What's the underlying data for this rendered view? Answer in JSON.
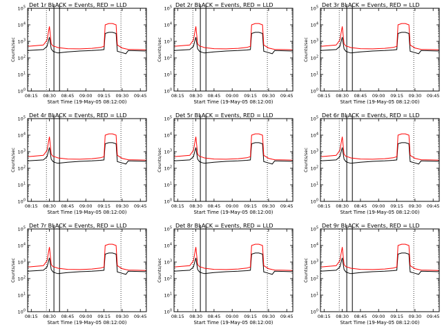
{
  "figure": {
    "colors": {
      "events": "#000000",
      "lld": "#ff0000",
      "frame": "#000000",
      "background": "#ffffff"
    }
  },
  "chart_data": [
    {
      "type": "line",
      "title": "Det 1r  BLACK = Events, RED = LLD",
      "xlabel": "Start Time (19-May-05 08:12:00)",
      "ylabel": "Counts/sec",
      "x_tick_labels": [
        "08:15",
        "08:30",
        "08:45",
        "09:00",
        "09:15",
        "09:30",
        "09:45"
      ],
      "y_tick_labels": [
        "10^0",
        "10^1",
        "10^2",
        "10^3",
        "10^4",
        "10^5"
      ],
      "ylim": [
        1,
        100000
      ],
      "yscale": "log",
      "x": [
        "08:12",
        "08:25",
        "08:28",
        "08:30",
        "08:31.5",
        "08:33",
        "08:35",
        "08:37",
        "08:45",
        "08:55",
        "09:05",
        "09:12",
        "09:15",
        "09:16",
        "09:19",
        "09:22",
        "09:25",
        "09:26",
        "09:30",
        "09:33",
        "09:35",
        "09:43",
        "09:50"
      ],
      "series": [
        {
          "name": "Events",
          "values": [
            280,
            320,
            500,
            1800,
            350,
            250,
            220,
            200,
            230,
            260,
            280,
            300,
            320,
            3000,
            3500,
            3500,
            3000,
            250,
            210,
            180,
            280,
            270,
            260
          ]
        },
        {
          "name": "LLD",
          "values": [
            500,
            600,
            1200,
            8000,
            700,
            520,
            480,
            420,
            360,
            350,
            380,
            430,
            500,
            10000,
            12000,
            12000,
            10000,
            600,
            400,
            350,
            330,
            320,
            310
          ]
        }
      ],
      "vertical_lines": {
        "dotted": [
          "08:27.5",
          "09:29"
        ],
        "solid": [
          "08:33.7",
          "08:38.3"
        ]
      }
    },
    {
      "type": "line",
      "title": "Det 2r  BLACK = Events, RED = LLD",
      "xlabel": "Start Time (19-May-05 08:12:00)",
      "ylabel": "Counts/sec",
      "x_tick_labels": [
        "08:15",
        "08:30",
        "08:45",
        "09:00",
        "09:15",
        "09:30",
        "09:45"
      ],
      "y_tick_labels": [
        "10^0",
        "10^1",
        "10^2",
        "10^3",
        "10^4",
        "10^5"
      ],
      "ylim": [
        1,
        100000
      ],
      "yscale": "log",
      "x": [
        "08:12",
        "08:25",
        "08:28",
        "08:30",
        "08:31.5",
        "08:33",
        "08:35",
        "08:37",
        "08:45",
        "08:55",
        "09:05",
        "09:12",
        "09:15",
        "09:16",
        "09:19",
        "09:22",
        "09:25",
        "09:26",
        "09:30",
        "09:33",
        "09:35",
        "09:43",
        "09:50"
      ],
      "series": [
        {
          "name": "Events",
          "values": [
            280,
            320,
            500,
            1800,
            350,
            250,
            220,
            200,
            230,
            260,
            280,
            300,
            320,
            3000,
            3500,
            3500,
            3000,
            250,
            210,
            180,
            280,
            270,
            260
          ]
        },
        {
          "name": "LLD",
          "values": [
            500,
            600,
            1200,
            8000,
            700,
            520,
            480,
            420,
            360,
            350,
            380,
            430,
            500,
            10000,
            12000,
            12000,
            10000,
            600,
            400,
            350,
            330,
            320,
            310
          ]
        }
      ],
      "vertical_lines": {
        "dotted": [
          "08:27.5",
          "09:29"
        ],
        "solid": [
          "08:33.7",
          "08:38.3"
        ]
      }
    },
    {
      "type": "line",
      "title": "Det 3r  BLACK = Events, RED = LLD",
      "xlabel": "Start Time (19-May-05 08:12:00)",
      "ylabel": "Counts/sec",
      "x_tick_labels": [
        "08:15",
        "08:30",
        "08:45",
        "09:00",
        "09:15",
        "09:30",
        "09:45"
      ],
      "y_tick_labels": [
        "10^0",
        "10^1",
        "10^2",
        "10^3",
        "10^4",
        "10^5"
      ],
      "ylim": [
        1,
        100000
      ],
      "yscale": "log",
      "x": [
        "08:12",
        "08:25",
        "08:28",
        "08:30",
        "08:31.5",
        "08:33",
        "08:35",
        "08:37",
        "08:45",
        "08:55",
        "09:05",
        "09:12",
        "09:15",
        "09:16",
        "09:19",
        "09:22",
        "09:25",
        "09:26",
        "09:30",
        "09:33",
        "09:35",
        "09:43",
        "09:50"
      ],
      "series": [
        {
          "name": "Events",
          "values": [
            280,
            320,
            500,
            1800,
            350,
            250,
            220,
            200,
            230,
            260,
            280,
            300,
            320,
            3000,
            3500,
            3500,
            3000,
            250,
            210,
            180,
            280,
            270,
            260
          ]
        },
        {
          "name": "LLD",
          "values": [
            500,
            600,
            1200,
            8000,
            700,
            520,
            480,
            420,
            360,
            350,
            380,
            430,
            500,
            10000,
            12000,
            12000,
            10000,
            600,
            400,
            350,
            330,
            320,
            310
          ]
        }
      ],
      "vertical_lines": {
        "dotted": [
          "08:27.5",
          "09:29"
        ],
        "solid": [
          "08:33.7",
          "08:38.3"
        ]
      }
    },
    {
      "type": "line",
      "title": "Det 4r  BLACK = Events, RED = LLD",
      "xlabel": "Start Time (19-May-05 08:12:00)",
      "ylabel": "Counts/sec",
      "x_tick_labels": [
        "08:15",
        "08:30",
        "08:45",
        "09:00",
        "09:15",
        "09:30",
        "09:45"
      ],
      "y_tick_labels": [
        "10^0",
        "10^1",
        "10^2",
        "10^3",
        "10^4",
        "10^5"
      ],
      "ylim": [
        1,
        100000
      ],
      "yscale": "log",
      "x": [
        "08:12",
        "08:25",
        "08:28",
        "08:30",
        "08:31.5",
        "08:33",
        "08:35",
        "08:37",
        "08:45",
        "08:55",
        "09:05",
        "09:12",
        "09:15",
        "09:16",
        "09:19",
        "09:22",
        "09:25",
        "09:26",
        "09:30",
        "09:33",
        "09:35",
        "09:43",
        "09:50"
      ],
      "series": [
        {
          "name": "Events",
          "values": [
            280,
            320,
            500,
            1800,
            350,
            250,
            220,
            200,
            230,
            260,
            280,
            300,
            320,
            3000,
            3500,
            3500,
            3000,
            250,
            210,
            180,
            280,
            270,
            260
          ]
        },
        {
          "name": "LLD",
          "values": [
            500,
            600,
            1200,
            8000,
            700,
            520,
            480,
            420,
            360,
            350,
            380,
            430,
            500,
            10000,
            12000,
            12000,
            10000,
            600,
            400,
            350,
            330,
            320,
            310
          ]
        }
      ],
      "vertical_lines": {
        "dotted": [
          "08:27.5",
          "09:29"
        ],
        "solid": [
          "08:33.7",
          "08:38.3"
        ]
      }
    },
    {
      "type": "line",
      "title": "Det 5r  BLACK = Events, RED = LLD",
      "xlabel": "Start Time (19-May-05 08:12:00)",
      "ylabel": "Counts/sec",
      "x_tick_labels": [
        "08:15",
        "08:30",
        "08:45",
        "09:00",
        "09:15",
        "09:30",
        "09:45"
      ],
      "y_tick_labels": [
        "10^0",
        "10^1",
        "10^2",
        "10^3",
        "10^4",
        "10^5"
      ],
      "ylim": [
        1,
        100000
      ],
      "yscale": "log",
      "x": [
        "08:12",
        "08:25",
        "08:28",
        "08:30",
        "08:31.5",
        "08:33",
        "08:35",
        "08:37",
        "08:45",
        "08:55",
        "09:05",
        "09:12",
        "09:15",
        "09:16",
        "09:19",
        "09:22",
        "09:25",
        "09:26",
        "09:30",
        "09:33",
        "09:35",
        "09:43",
        "09:50"
      ],
      "series": [
        {
          "name": "Events",
          "values": [
            280,
            320,
            500,
            1800,
            350,
            250,
            220,
            200,
            230,
            260,
            280,
            300,
            320,
            3000,
            3500,
            3500,
            3000,
            250,
            210,
            180,
            280,
            270,
            260
          ]
        },
        {
          "name": "LLD",
          "values": [
            500,
            600,
            1200,
            8000,
            700,
            520,
            480,
            420,
            360,
            350,
            380,
            430,
            500,
            10000,
            12000,
            12000,
            10000,
            600,
            400,
            350,
            330,
            320,
            310
          ]
        }
      ],
      "vertical_lines": {
        "dotted": [
          "08:27.5",
          "09:29"
        ],
        "solid": [
          "08:33.7",
          "08:38.3"
        ]
      }
    },
    {
      "type": "line",
      "title": "Det 6r  BLACK = Events, RED = LLD",
      "xlabel": "Start Time (19-May-05 08:12:00)",
      "ylabel": "Counts/sec",
      "x_tick_labels": [
        "08:15",
        "08:30",
        "08:45",
        "09:00",
        "09:15",
        "09:30",
        "09:45"
      ],
      "y_tick_labels": [
        "10^0",
        "10^1",
        "10^2",
        "10^3",
        "10^4",
        "10^5"
      ],
      "ylim": [
        1,
        100000
      ],
      "yscale": "log",
      "x": [
        "08:12",
        "08:25",
        "08:28",
        "08:30",
        "08:31.5",
        "08:33",
        "08:35",
        "08:37",
        "08:45",
        "08:55",
        "09:05",
        "09:12",
        "09:15",
        "09:16",
        "09:19",
        "09:22",
        "09:25",
        "09:26",
        "09:30",
        "09:33",
        "09:35",
        "09:43",
        "09:50"
      ],
      "series": [
        {
          "name": "Events",
          "values": [
            280,
            320,
            500,
            1800,
            350,
            250,
            220,
            200,
            230,
            260,
            280,
            300,
            320,
            3000,
            3500,
            3500,
            3000,
            250,
            210,
            180,
            280,
            270,
            260
          ]
        },
        {
          "name": "LLD",
          "values": [
            500,
            600,
            1200,
            8000,
            700,
            520,
            480,
            420,
            360,
            350,
            380,
            430,
            500,
            10000,
            12000,
            12000,
            10000,
            600,
            400,
            350,
            330,
            320,
            310
          ]
        }
      ],
      "vertical_lines": {
        "dotted": [
          "08:27.5",
          "09:29"
        ],
        "solid": [
          "08:33.7",
          "08:38.3"
        ]
      }
    },
    {
      "type": "line",
      "title": "Det 7r  BLACK = Events, RED = LLD",
      "xlabel": "Start Time (19-May-05 08:12:00)",
      "ylabel": "Counts/sec",
      "x_tick_labels": [
        "08:15",
        "08:30",
        "08:45",
        "09:00",
        "09:15",
        "09:30",
        "09:45"
      ],
      "y_tick_labels": [
        "10^0",
        "10^1",
        "10^2",
        "10^3",
        "10^4",
        "10^5"
      ],
      "ylim": [
        1,
        100000
      ],
      "yscale": "log",
      "x": [
        "08:12",
        "08:25",
        "08:28",
        "08:30",
        "08:31.5",
        "08:33",
        "08:35",
        "08:37",
        "08:45",
        "08:55",
        "09:05",
        "09:12",
        "09:15",
        "09:16",
        "09:19",
        "09:22",
        "09:25",
        "09:26",
        "09:30",
        "09:33",
        "09:35",
        "09:43",
        "09:50"
      ],
      "series": [
        {
          "name": "Events",
          "values": [
            280,
            320,
            500,
            1800,
            350,
            250,
            220,
            200,
            230,
            260,
            280,
            300,
            320,
            3000,
            3500,
            3500,
            3000,
            250,
            210,
            180,
            280,
            270,
            260
          ]
        },
        {
          "name": "LLD",
          "values": [
            500,
            600,
            1200,
            8000,
            700,
            520,
            480,
            420,
            360,
            350,
            380,
            430,
            500,
            10000,
            12000,
            12000,
            10000,
            600,
            400,
            350,
            330,
            320,
            310
          ]
        }
      ],
      "vertical_lines": {
        "dotted": [
          "08:27.5",
          "09:29"
        ],
        "solid": [
          "08:33.7",
          "08:38.3"
        ]
      }
    },
    {
      "type": "line",
      "title": "Det 8r  BLACK = Events, RED = LLD",
      "xlabel": "Start Time (19-May-05 08:12:00)",
      "ylabel": "Counts/sec",
      "x_tick_labels": [
        "08:15",
        "08:30",
        "08:45",
        "09:00",
        "09:15",
        "09:30",
        "09:45"
      ],
      "y_tick_labels": [
        "10^0",
        "10^1",
        "10^2",
        "10^3",
        "10^4",
        "10^5"
      ],
      "ylim": [
        1,
        100000
      ],
      "yscale": "log",
      "x": [
        "08:12",
        "08:25",
        "08:28",
        "08:30",
        "08:31.5",
        "08:33",
        "08:35",
        "08:37",
        "08:45",
        "08:55",
        "09:05",
        "09:12",
        "09:15",
        "09:16",
        "09:19",
        "09:22",
        "09:25",
        "09:26",
        "09:30",
        "09:33",
        "09:35",
        "09:43",
        "09:50"
      ],
      "series": [
        {
          "name": "Events",
          "values": [
            280,
            320,
            500,
            1800,
            350,
            250,
            220,
            200,
            230,
            260,
            280,
            300,
            320,
            3000,
            3500,
            3500,
            3000,
            250,
            210,
            180,
            280,
            270,
            260
          ]
        },
        {
          "name": "LLD",
          "values": [
            500,
            600,
            1200,
            8000,
            700,
            520,
            480,
            420,
            360,
            350,
            380,
            430,
            500,
            10000,
            12000,
            12000,
            10000,
            600,
            400,
            350,
            330,
            320,
            310
          ]
        }
      ],
      "vertical_lines": {
        "dotted": [
          "08:27.5",
          "09:29"
        ],
        "solid": [
          "08:33.7",
          "08:38.3"
        ]
      }
    },
    {
      "type": "line",
      "title": "Det 9r  BLACK = Events, RED = LLD",
      "xlabel": "Start Time (19-May-05 08:12:00)",
      "ylabel": "Counts/sec",
      "x_tick_labels": [
        "08:15",
        "08:30",
        "08:45",
        "09:00",
        "09:15",
        "09:30",
        "09:45"
      ],
      "y_tick_labels": [
        "10^0",
        "10^1",
        "10^2",
        "10^3",
        "10^4",
        "10^5"
      ],
      "ylim": [
        1,
        100000
      ],
      "yscale": "log",
      "x": [
        "08:12",
        "08:25",
        "08:28",
        "08:30",
        "08:31.5",
        "08:33",
        "08:35",
        "08:37",
        "08:45",
        "08:55",
        "09:05",
        "09:12",
        "09:15",
        "09:16",
        "09:19",
        "09:22",
        "09:25",
        "09:26",
        "09:30",
        "09:33",
        "09:35",
        "09:43",
        "09:50"
      ],
      "series": [
        {
          "name": "Events",
          "values": [
            280,
            320,
            500,
            1800,
            350,
            250,
            220,
            200,
            230,
            260,
            280,
            300,
            320,
            3000,
            3500,
            3500,
            3000,
            250,
            210,
            180,
            280,
            270,
            260
          ]
        },
        {
          "name": "LLD",
          "values": [
            500,
            600,
            1200,
            8000,
            700,
            520,
            480,
            420,
            360,
            350,
            380,
            430,
            500,
            10000,
            12000,
            12000,
            10000,
            600,
            400,
            350,
            330,
            320,
            310
          ]
        }
      ],
      "vertical_lines": {
        "dotted": [
          "08:27.5",
          "09:29"
        ],
        "solid": [
          "08:33.7",
          "08:38.3"
        ]
      }
    }
  ]
}
